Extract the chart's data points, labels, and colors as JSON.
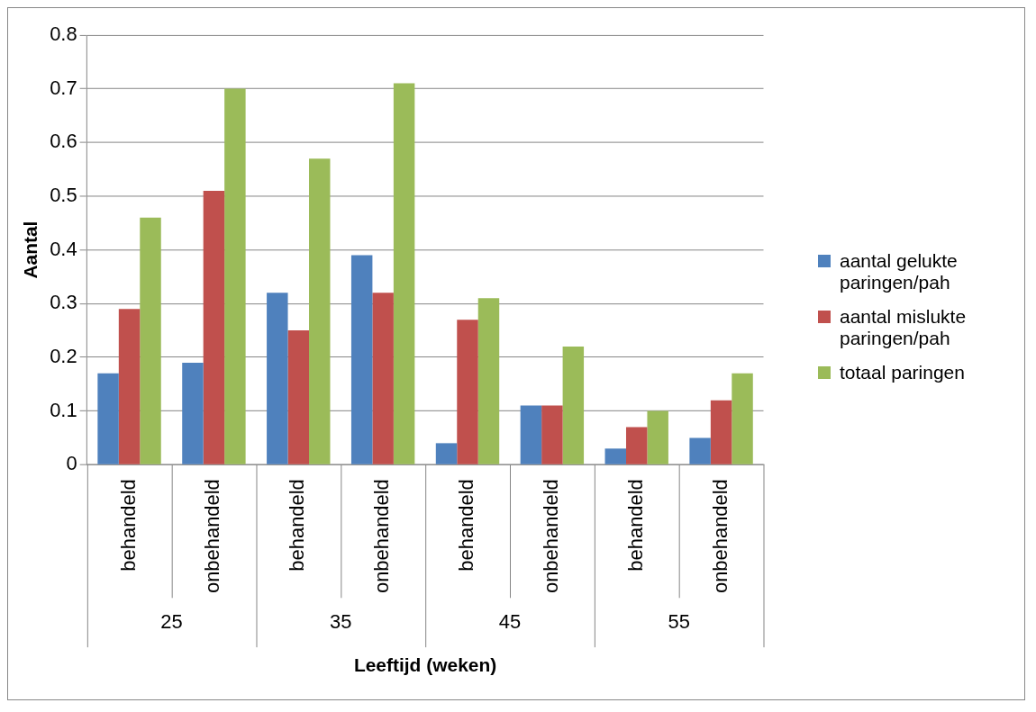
{
  "chart_data": {
    "type": "bar",
    "xlabel": "Leeftijd (weken)",
    "ylabel": "Aantal",
    "categories": [
      "behandeld",
      "onbehandeld",
      "behandeld",
      "onbehandeld",
      "behandeld",
      "onbehandeld",
      "behandeld",
      "onbehandeld"
    ],
    "annotations": [
      "25",
      "35",
      "45",
      "55"
    ],
    "series": [
      {
        "name": "aantal gelukte paringen/pah",
        "color": "#4f81bd",
        "values": [
          0.17,
          0.19,
          0.32,
          0.39,
          0.04,
          0.11,
          0.03,
          0.05
        ]
      },
      {
        "name": "aantal mislukte paringen/pah",
        "color": "#c0504d",
        "values": [
          0.29,
          0.51,
          0.25,
          0.32,
          0.27,
          0.11,
          0.07,
          0.12
        ]
      },
      {
        "name": "totaal paringen",
        "color": "#9bbb59",
        "values": [
          0.46,
          0.7,
          0.57,
          0.71,
          0.31,
          0.22,
          0.1,
          0.17
        ]
      }
    ],
    "ylim": [
      0,
      0.8
    ],
    "yticks": [
      0,
      0.1,
      0.2,
      0.3,
      0.4,
      0.5,
      0.6,
      0.7,
      0.8
    ],
    "grid": "y",
    "legend": "right"
  }
}
